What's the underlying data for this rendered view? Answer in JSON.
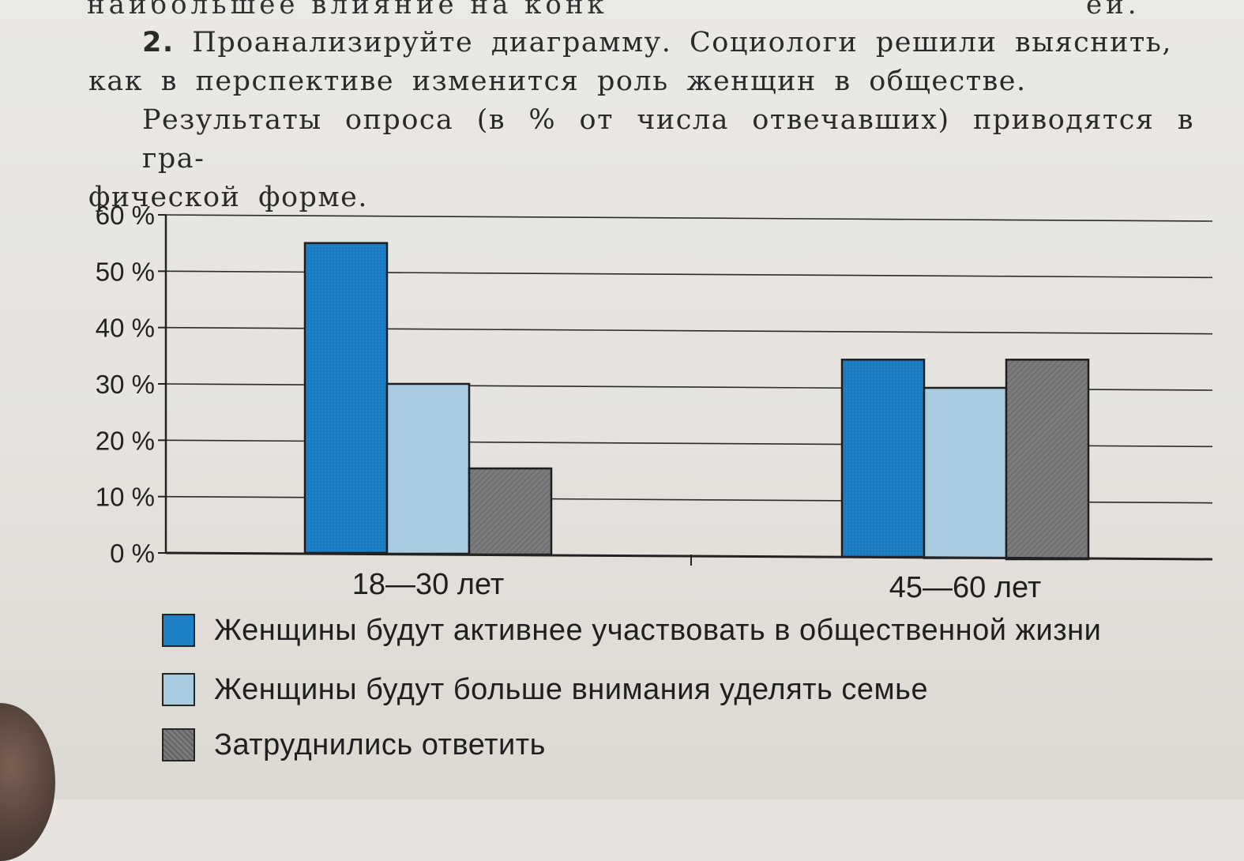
{
  "page": {
    "top_cut_left": "наибольшее влияние на конк",
    "top_cut_right": "ей.",
    "task_number": "2.",
    "task_line1": "Проанализируйте диаграмму. Социологи решили выяснить,",
    "task_line2": "как в перспективе изменится роль женщин в обществе.",
    "task_line3": "Результаты опроса (в % от числа отвечавших) приводятся в гра-",
    "task_line4": "фической форме."
  },
  "chart_data": {
    "type": "bar",
    "title": "",
    "xlabel": "",
    "ylabel": "",
    "categories": [
      "18—30 лет",
      "45—60 лет"
    ],
    "series": [
      {
        "name": "Женщины будут активнее участвовать в общественной жизни",
        "values": [
          55,
          35
        ],
        "color": "#1d7fc4"
      },
      {
        "name": "Женщины будут больше внимания уделять семье",
        "values": [
          30,
          30
        ],
        "color": "#a9cbe0"
      },
      {
        "name": "Затруднились ответить",
        "values": [
          15,
          35
        ],
        "color": "#7b7b7b"
      }
    ],
    "ylim": [
      0,
      60
    ],
    "yticks": [
      0,
      10,
      20,
      30,
      40,
      50,
      60
    ],
    "ytick_labels": [
      "0 %",
      "10 %",
      "20 %",
      "30 %",
      "40 %",
      "50 %",
      "60 %"
    ],
    "grid": true,
    "legend_position": "bottom"
  }
}
